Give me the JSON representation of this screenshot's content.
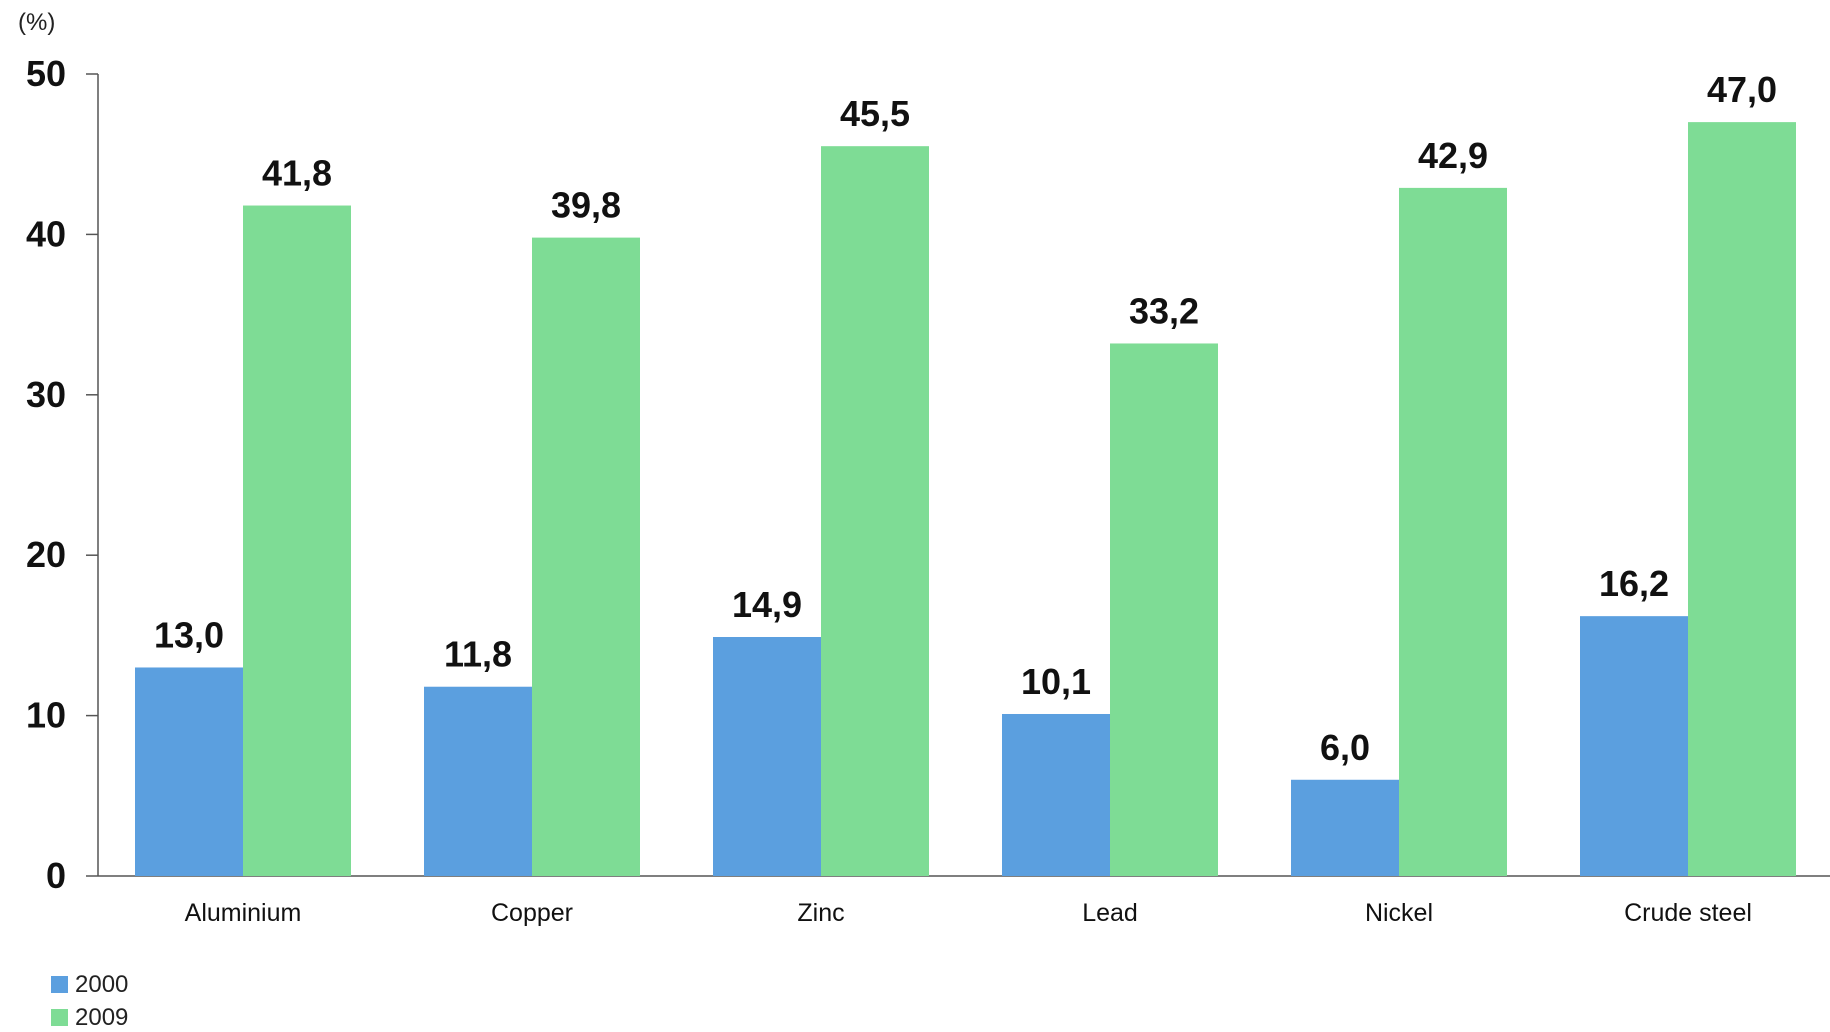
{
  "chart_data": {
    "type": "bar",
    "categories": [
      "Aluminium",
      "Copper",
      "Zinc",
      "Lead",
      "Nickel",
      "Crude steel"
    ],
    "series": [
      {
        "name": "2000",
        "values": [
          13.0,
          11.8,
          14.9,
          10.1,
          6.0,
          16.2
        ],
        "labels": [
          "13,0",
          "11,8",
          "14,9",
          "10,1",
          "6,0",
          "16,2"
        ],
        "color": "#5B9FDF"
      },
      {
        "name": "2009",
        "values": [
          41.8,
          39.8,
          45.5,
          33.2,
          42.9,
          47.0
        ],
        "labels": [
          "41,8",
          "39,8",
          "45,5",
          "33,2",
          "42,9",
          "47,0"
        ],
        "color": "#7EDC95"
      }
    ],
    "unit_label": "(%)",
    "ylim": [
      0,
      50
    ],
    "yticks": [
      0,
      10,
      20,
      30,
      40,
      50
    ],
    "grid": false,
    "legend_position": "bottom-left"
  }
}
